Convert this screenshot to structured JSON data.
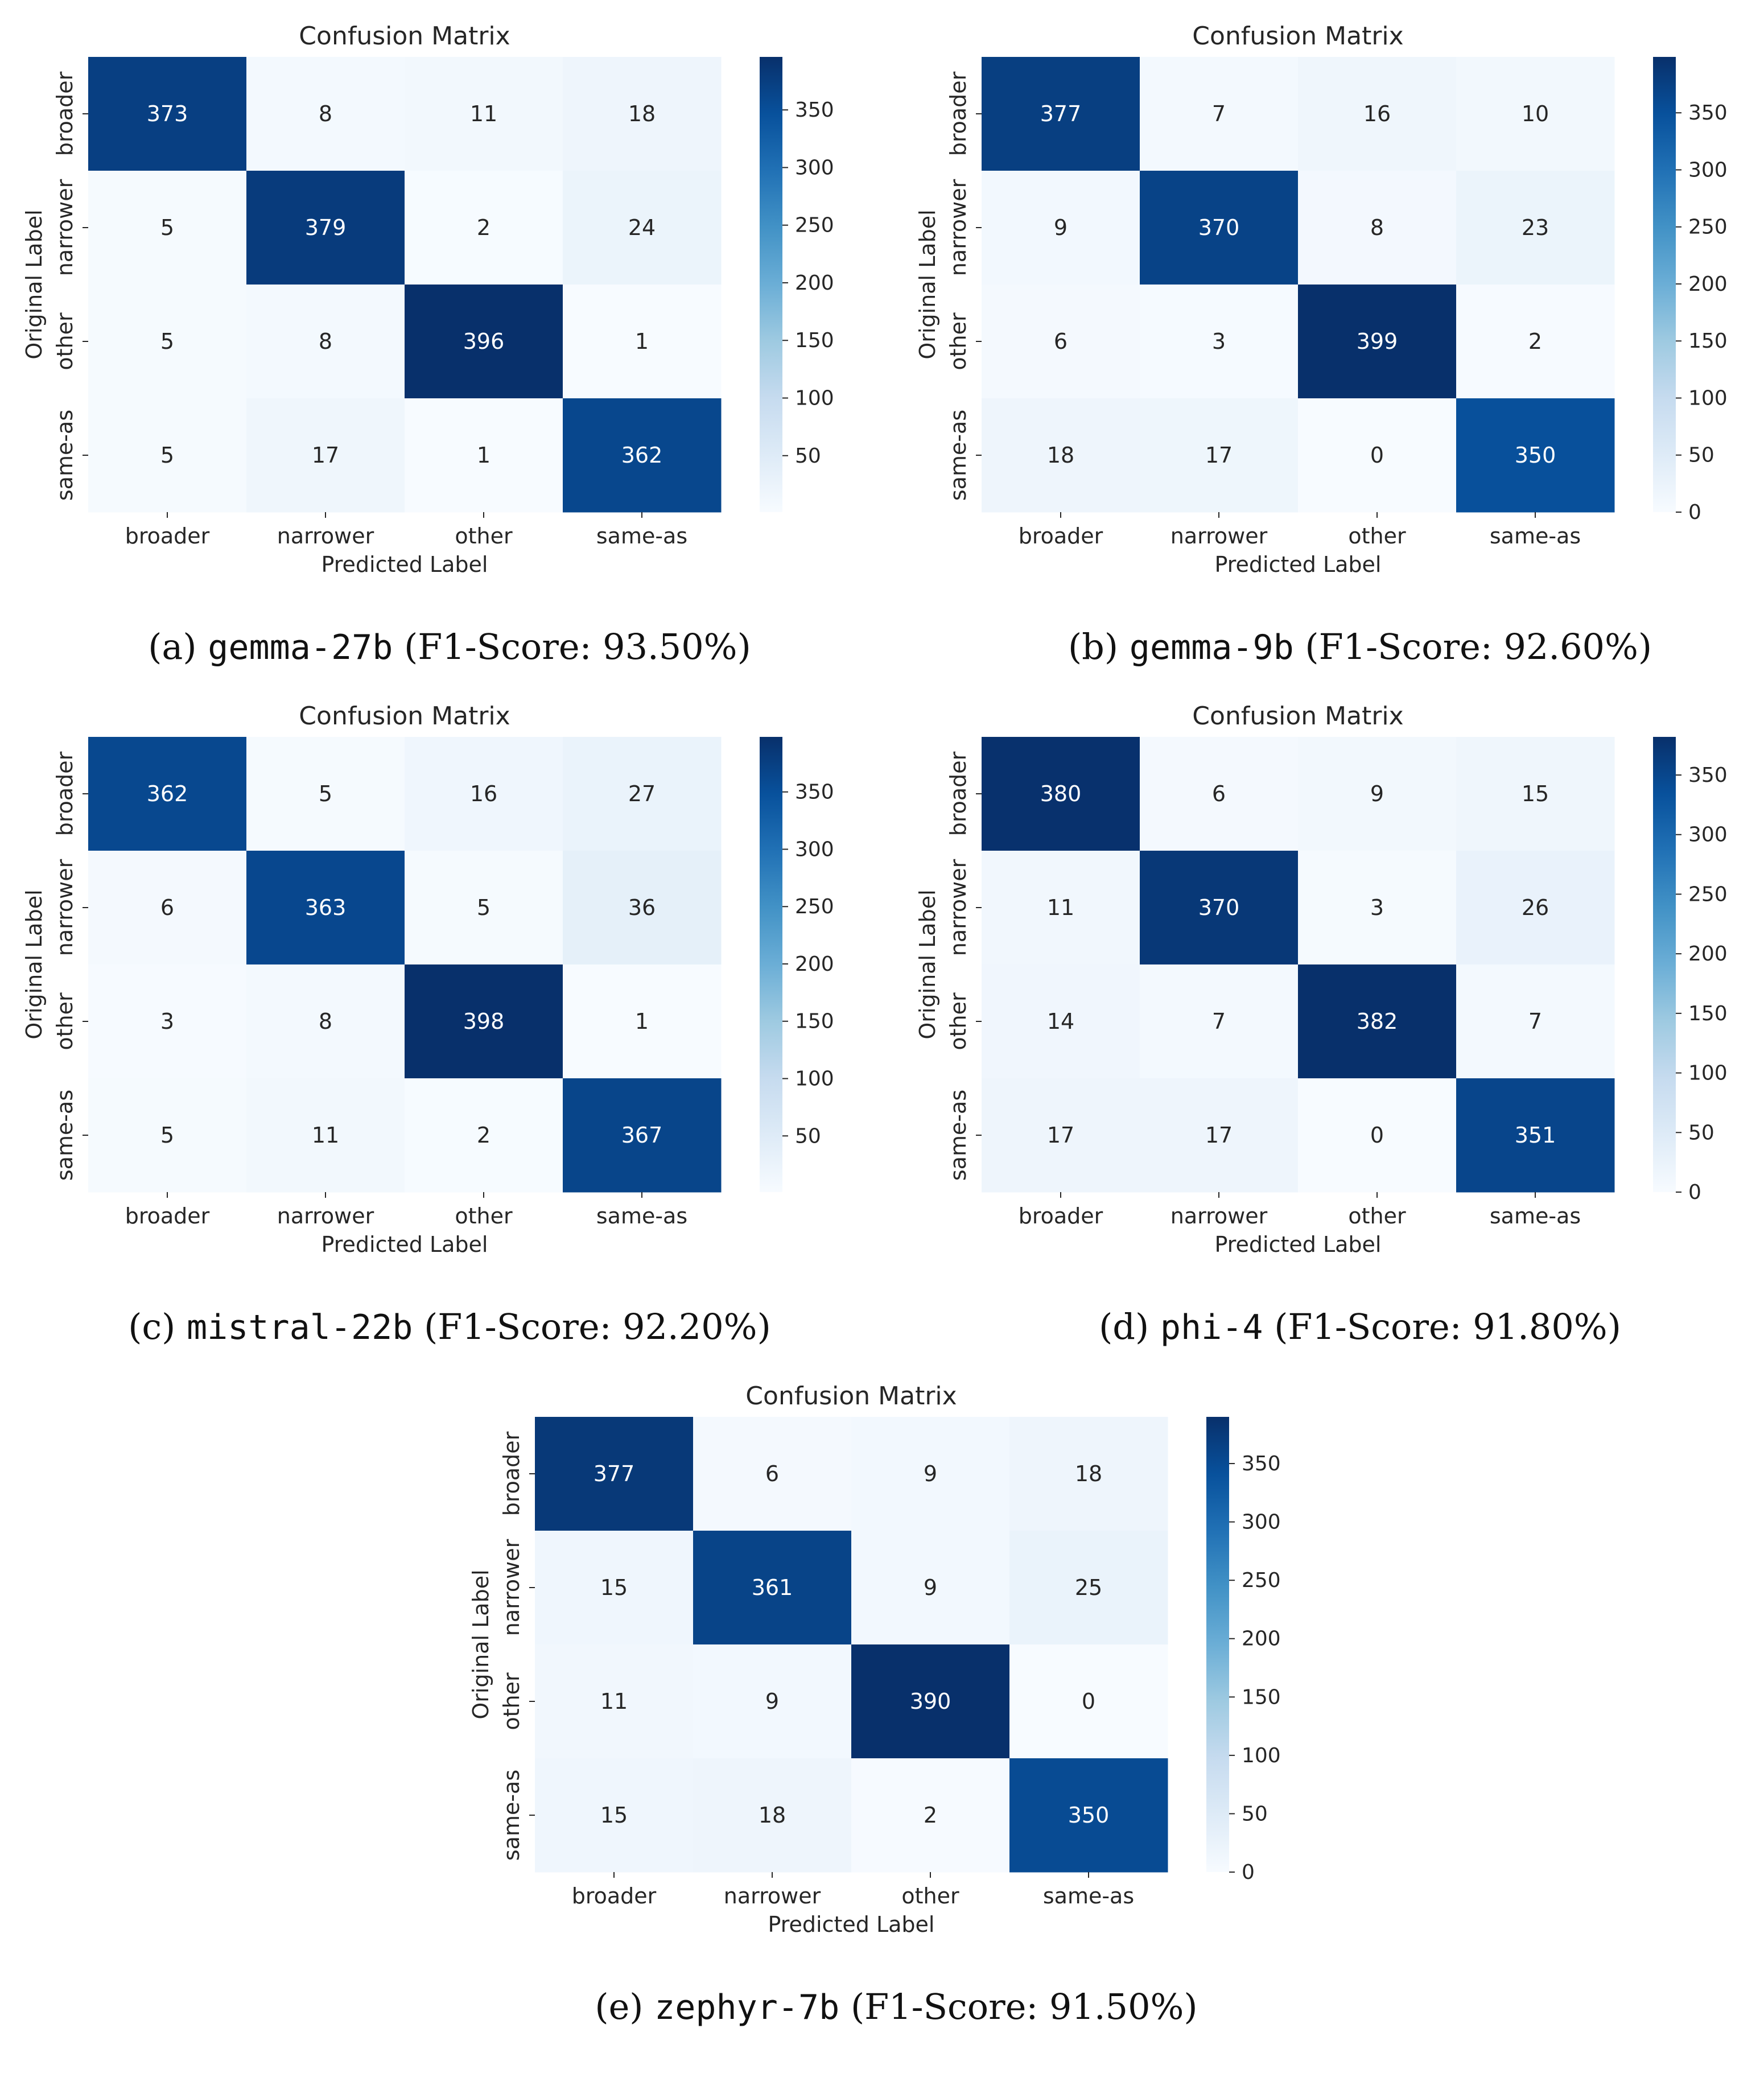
{
  "chart_data": [
    {
      "type": "heatmap",
      "title": "Confusion Matrix",
      "xlabel": "Predicted Label",
      "ylabel": "Original Label",
      "x_categories": [
        "broader",
        "narrower",
        "other",
        "same-as"
      ],
      "y_categories": [
        "broader",
        "narrower",
        "other",
        "same-as"
      ],
      "values": [
        [
          373,
          8,
          11,
          18
        ],
        [
          5,
          379,
          2,
          24
        ],
        [
          5,
          8,
          396,
          1
        ],
        [
          5,
          17,
          1,
          362
        ]
      ],
      "colorbar": {
        "ticks": [
          50,
          100,
          150,
          200,
          250,
          300,
          350
        ],
        "range": [
          1,
          396
        ],
        "colormap": "Blues"
      },
      "caption": {
        "prefix": "(a)",
        "model": "gemma-27b",
        "score": "(F1-Score: 93.50%)"
      }
    },
    {
      "type": "heatmap",
      "title": "Confusion Matrix",
      "xlabel": "Predicted Label",
      "ylabel": "Original Label",
      "x_categories": [
        "broader",
        "narrower",
        "other",
        "same-as"
      ],
      "y_categories": [
        "broader",
        "narrower",
        "other",
        "same-as"
      ],
      "values": [
        [
          377,
          7,
          16,
          10
        ],
        [
          9,
          370,
          8,
          23
        ],
        [
          6,
          3,
          399,
          2
        ],
        [
          18,
          17,
          0,
          350
        ]
      ],
      "colorbar": {
        "ticks": [
          0,
          50,
          100,
          150,
          200,
          250,
          300,
          350
        ],
        "range": [
          0,
          399
        ],
        "colormap": "Blues"
      },
      "caption": {
        "prefix": "(b)",
        "model": "gemma-9b",
        "score": "(F1-Score: 92.60%)"
      }
    },
    {
      "type": "heatmap",
      "title": "Confusion Matrix",
      "xlabel": "Predicted Label",
      "ylabel": "Original Label",
      "x_categories": [
        "broader",
        "narrower",
        "other",
        "same-as"
      ],
      "y_categories": [
        "broader",
        "narrower",
        "other",
        "same-as"
      ],
      "values": [
        [
          362,
          5,
          16,
          27
        ],
        [
          6,
          363,
          5,
          36
        ],
        [
          3,
          8,
          398,
          1
        ],
        [
          5,
          11,
          2,
          367
        ]
      ],
      "colorbar": {
        "ticks": [
          50,
          100,
          150,
          200,
          250,
          300,
          350
        ],
        "range": [
          1,
          398
        ],
        "colormap": "Blues"
      },
      "caption": {
        "prefix": "(c)",
        "model": "mistral-22b",
        "score": "(F1-Score: 92.20%)"
      }
    },
    {
      "type": "heatmap",
      "title": "Confusion Matrix",
      "xlabel": "Predicted Label",
      "ylabel": "Original Label",
      "x_categories": [
        "broader",
        "narrower",
        "other",
        "same-as"
      ],
      "y_categories": [
        "broader",
        "narrower",
        "other",
        "same-as"
      ],
      "values": [
        [
          380,
          6,
          9,
          15
        ],
        [
          11,
          370,
          3,
          26
        ],
        [
          14,
          7,
          382,
          7
        ],
        [
          17,
          17,
          0,
          351
        ]
      ],
      "colorbar": {
        "ticks": [
          0,
          50,
          100,
          150,
          200,
          250,
          300,
          350
        ],
        "range": [
          0,
          382
        ],
        "colormap": "Blues"
      },
      "caption": {
        "prefix": "(d)",
        "model": "phi-4",
        "score": "(F1-Score: 91.80%)"
      }
    },
    {
      "type": "heatmap",
      "title": "Confusion Matrix",
      "xlabel": "Predicted Label",
      "ylabel": "Original Label",
      "x_categories": [
        "broader",
        "narrower",
        "other",
        "same-as"
      ],
      "y_categories": [
        "broader",
        "narrower",
        "other",
        "same-as"
      ],
      "values": [
        [
          377,
          6,
          9,
          18
        ],
        [
          15,
          361,
          9,
          25
        ],
        [
          11,
          9,
          390,
          0
        ],
        [
          15,
          18,
          2,
          350
        ]
      ],
      "colorbar": {
        "ticks": [
          0,
          50,
          100,
          150,
          200,
          250,
          300,
          350
        ],
        "range": [
          0,
          390
        ],
        "colormap": "Blues"
      },
      "caption": {
        "prefix": "(e)",
        "model": "zephyr-7b",
        "score": "(F1-Score: 91.50%)"
      }
    }
  ]
}
